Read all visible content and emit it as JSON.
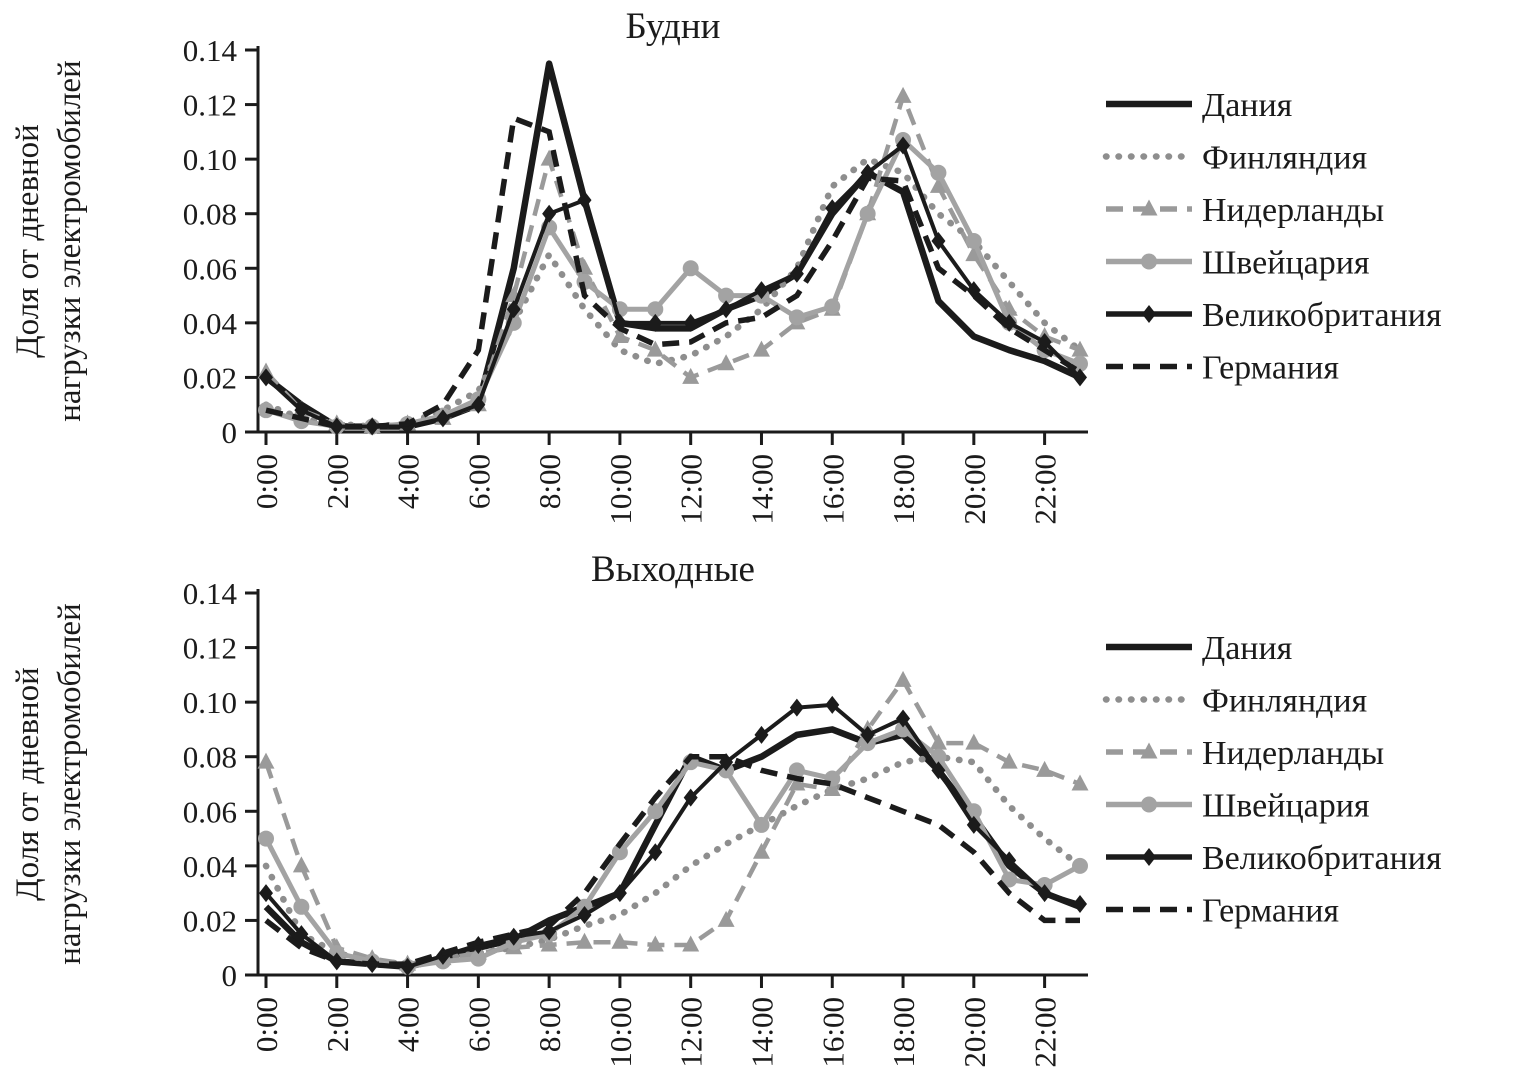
{
  "figure": {
    "ylabel_line1": "Доля от дневной",
    "ylabel_line2": "нагрузки электромобилей"
  },
  "chart_data": [
    {
      "type": "line",
      "title": "Будни",
      "xlabel": "",
      "ylabel": "Доля от дневной нагрузки электромобилей",
      "ylim": [
        0,
        0.14
      ],
      "grid": false,
      "legend_position": "right",
      "x_hours": [
        0,
        1,
        2,
        3,
        4,
        5,
        6,
        7,
        8,
        9,
        10,
        11,
        12,
        13,
        14,
        15,
        16,
        17,
        18,
        19,
        20,
        21,
        22,
        23
      ],
      "xtick_hours": [
        0,
        2,
        4,
        6,
        8,
        10,
        12,
        14,
        16,
        18,
        20,
        22
      ],
      "xtick_labels": [
        "0:00",
        "2:00",
        "4:00",
        "6:00",
        "8:00",
        "10:00",
        "12:00",
        "14:00",
        "16:00",
        "18:00",
        "20:00",
        "22:00"
      ],
      "yticks": [
        0,
        0.02,
        0.04,
        0.06,
        0.08,
        0.1,
        0.12,
        0.14
      ],
      "ytick_labels": [
        "0",
        "0.02",
        "0.04",
        "0.06",
        "0.08",
        "0.10",
        "0.12",
        "0.14"
      ],
      "series": [
        {
          "name": "Дания",
          "color": "#1b1b1b",
          "line": "solid",
          "marker": "none",
          "width": 6.5,
          "values": [
            0.02,
            0.01,
            0.002,
            0.002,
            0.002,
            0.005,
            0.01,
            0.06,
            0.135,
            0.085,
            0.04,
            0.038,
            0.038,
            0.045,
            0.05,
            0.058,
            0.08,
            0.095,
            0.088,
            0.048,
            0.035,
            0.03,
            0.026,
            0.02
          ]
        },
        {
          "name": "Финляндия",
          "color": "#8e8e8e",
          "line": "dotted",
          "marker": "none",
          "width": 6.5,
          "values": [
            0.01,
            0.005,
            0.003,
            0.002,
            0.003,
            0.008,
            0.015,
            0.04,
            0.065,
            0.045,
            0.03,
            0.025,
            0.028,
            0.035,
            0.045,
            0.06,
            0.09,
            0.1,
            0.095,
            0.08,
            0.07,
            0.055,
            0.04,
            0.03
          ]
        },
        {
          "name": "Нидерланды",
          "color": "#9a9a9a",
          "line": "dashed",
          "marker": "triangle",
          "width": 4.5,
          "values": [
            0.022,
            0.008,
            0.003,
            0.002,
            0.003,
            0.005,
            0.01,
            0.05,
            0.1,
            0.06,
            0.035,
            0.03,
            0.02,
            0.025,
            0.03,
            0.04,
            0.045,
            0.08,
            0.123,
            0.09,
            0.065,
            0.045,
            0.035,
            0.03
          ]
        },
        {
          "name": "Швейцария",
          "color": "#a3a3a3",
          "line": "solid",
          "marker": "circle",
          "width": 5,
          "values": [
            0.008,
            0.004,
            0.002,
            0.002,
            0.003,
            0.006,
            0.012,
            0.04,
            0.075,
            0.055,
            0.045,
            0.045,
            0.06,
            0.05,
            0.05,
            0.042,
            0.046,
            0.08,
            0.107,
            0.095,
            0.07,
            0.04,
            0.03,
            0.025
          ]
        },
        {
          "name": "Великобритания",
          "color": "#1b1b1b",
          "line": "solid",
          "marker": "diamond",
          "width": 4,
          "values": [
            0.02,
            0.008,
            0.002,
            0.002,
            0.002,
            0.005,
            0.01,
            0.045,
            0.08,
            0.085,
            0.04,
            0.04,
            0.04,
            0.045,
            0.052,
            0.058,
            0.082,
            0.095,
            0.105,
            0.07,
            0.052,
            0.04,
            0.033,
            0.02
          ]
        },
        {
          "name": "Германия",
          "color": "#1b1b1b",
          "line": "dashed",
          "marker": "none",
          "width": 5.5,
          "values": [
            0.008,
            0.005,
            0.002,
            0.002,
            0.003,
            0.01,
            0.03,
            0.115,
            0.11,
            0.05,
            0.038,
            0.032,
            0.033,
            0.04,
            0.042,
            0.05,
            0.07,
            0.093,
            0.092,
            0.06,
            0.05,
            0.038,
            0.03,
            0.022
          ]
        }
      ]
    },
    {
      "type": "line",
      "title": "Выходные",
      "xlabel": "",
      "ylabel": "Доля от дневной нагрузки электромобилей",
      "ylim": [
        0,
        0.14
      ],
      "grid": false,
      "legend_position": "right",
      "x_hours": [
        0,
        1,
        2,
        3,
        4,
        5,
        6,
        7,
        8,
        9,
        10,
        11,
        12,
        13,
        14,
        15,
        16,
        17,
        18,
        19,
        20,
        21,
        22,
        23
      ],
      "xtick_hours": [
        0,
        2,
        4,
        6,
        8,
        10,
        12,
        14,
        16,
        18,
        20,
        22
      ],
      "xtick_labels": [
        "0:00",
        "2:00",
        "4:00",
        "6:00",
        "8:00",
        "10:00",
        "12:00",
        "14:00",
        "16:00",
        "18:00",
        "20:00",
        "22:00"
      ],
      "yticks": [
        0,
        0.02,
        0.04,
        0.06,
        0.08,
        0.1,
        0.12,
        0.14
      ],
      "ytick_labels": [
        "0",
        "0.02",
        "0.04",
        "0.06",
        "0.08",
        "0.10",
        "0.12",
        "0.14"
      ],
      "series": [
        {
          "name": "Дания",
          "color": "#1b1b1b",
          "line": "solid",
          "marker": "none",
          "width": 6.5,
          "values": [
            0.025,
            0.012,
            0.005,
            0.004,
            0.003,
            0.006,
            0.01,
            0.013,
            0.02,
            0.025,
            0.03,
            0.055,
            0.08,
            0.075,
            0.08,
            0.088,
            0.09,
            0.085,
            0.088,
            0.075,
            0.058,
            0.04,
            0.03,
            0.025
          ]
        },
        {
          "name": "Финляндия",
          "color": "#8e8e8e",
          "line": "dotted",
          "marker": "none",
          "width": 6.5,
          "values": [
            0.04,
            0.015,
            0.008,
            0.005,
            0.004,
            0.006,
            0.008,
            0.01,
            0.013,
            0.018,
            0.022,
            0.03,
            0.04,
            0.048,
            0.055,
            0.062,
            0.068,
            0.072,
            0.078,
            0.08,
            0.078,
            0.062,
            0.05,
            0.04
          ]
        },
        {
          "name": "Нидерланды",
          "color": "#9a9a9a",
          "line": "dashed",
          "marker": "triangle",
          "width": 4.5,
          "values": [
            0.078,
            0.04,
            0.01,
            0.006,
            0.004,
            0.006,
            0.008,
            0.01,
            0.011,
            0.012,
            0.012,
            0.011,
            0.011,
            0.02,
            0.045,
            0.07,
            0.068,
            0.09,
            0.108,
            0.085,
            0.085,
            0.078,
            0.075,
            0.07
          ]
        },
        {
          "name": "Швейцария",
          "color": "#a3a3a3",
          "line": "solid",
          "marker": "circle",
          "width": 5,
          "values": [
            0.05,
            0.025,
            0.008,
            0.005,
            0.003,
            0.005,
            0.006,
            0.012,
            0.015,
            0.025,
            0.045,
            0.06,
            0.078,
            0.075,
            0.055,
            0.075,
            0.072,
            0.085,
            0.09,
            0.08,
            0.06,
            0.035,
            0.033,
            0.04
          ]
        },
        {
          "name": "Великобритания",
          "color": "#1b1b1b",
          "line": "solid",
          "marker": "diamond",
          "width": 4,
          "values": [
            0.03,
            0.015,
            0.005,
            0.004,
            0.003,
            0.007,
            0.011,
            0.014,
            0.016,
            0.022,
            0.03,
            0.045,
            0.065,
            0.078,
            0.088,
            0.098,
            0.099,
            0.088,
            0.094,
            0.075,
            0.055,
            0.042,
            0.03,
            0.026
          ]
        },
        {
          "name": "Германия",
          "color": "#1b1b1b",
          "line": "dashed",
          "marker": "none",
          "width": 5.5,
          "values": [
            0.02,
            0.01,
            0.005,
            0.004,
            0.004,
            0.008,
            0.012,
            0.015,
            0.018,
            0.03,
            0.048,
            0.065,
            0.08,
            0.08,
            0.075,
            0.072,
            0.07,
            0.065,
            0.06,
            0.055,
            0.045,
            0.03,
            0.02,
            0.02
          ]
        }
      ]
    }
  ]
}
